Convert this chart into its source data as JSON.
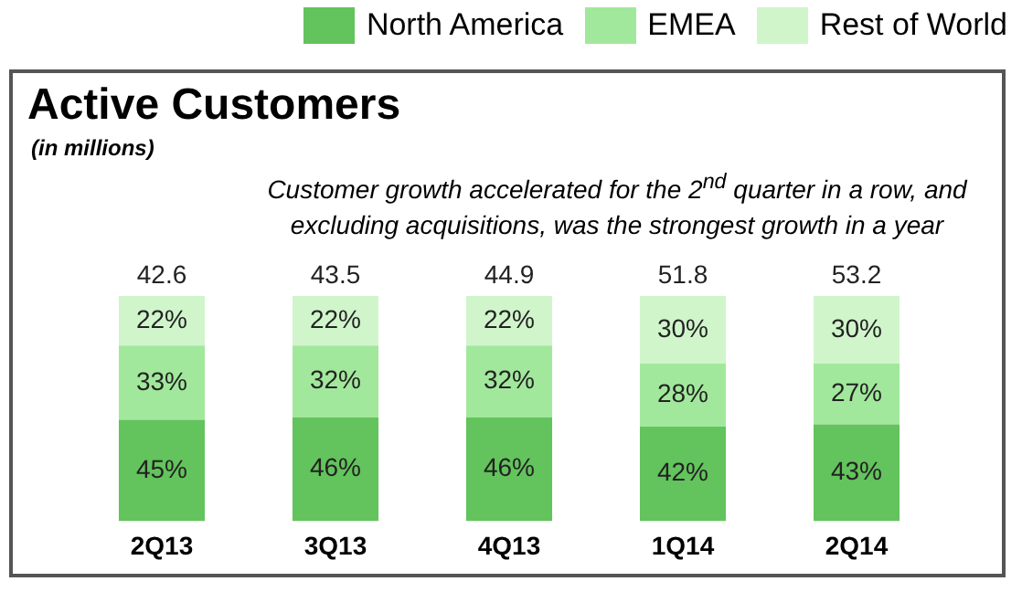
{
  "chart_data": {
    "type": "bar",
    "title": "Active Customers",
    "subtitle": "(in millions)",
    "annotations": [
      "Customer growth accelerated for the 2$^{nd}$ quarter in a row, and excluding acquisitions, was the strongest growth in a year",
      {
        "text": "42.6",
        "x": "2Q13",
        "y": 100
      },
      {
        "text": "43.5",
        "x": "3Q13",
        "y": 100
      },
      {
        "text": "44.9",
        "x": "4Q13",
        "y": 100
      },
      {
        "text": "51.8",
        "x": "1Q14",
        "y": 100
      },
      {
        "text": "53.2",
        "x": "2Q14",
        "y": 100
      }
    ],
    "categories": [
      "2Q13",
      "3Q13",
      "4Q13",
      "1Q14",
      "2Q14"
    ],
    "stacked": true,
    "legend": "top right",
    "grid": false,
    "series": [
      {
        "name": "North America",
        "color": "#63c35c",
        "values": [
          45,
          46,
          46,
          42,
          43
        ],
        "value_labels": [
          "45%",
          "46%",
          "46%",
          "42%",
          "43%"
        ]
      },
      {
        "name": "EMEA",
        "color": "#a2e89c",
        "values": [
          33,
          32,
          32,
          28,
          27
        ],
        "value_labels": [
          "33%",
          "32%",
          "32%",
          "28%",
          "27%"
        ]
      },
      {
        "name": "Rest of World",
        "color": "#d0f5cb",
        "values": [
          22,
          22,
          22,
          30,
          30
        ],
        "value_labels": [
          "22%",
          "22%",
          "22%",
          "30%",
          "30%"
        ]
      }
    ]
  }
}
